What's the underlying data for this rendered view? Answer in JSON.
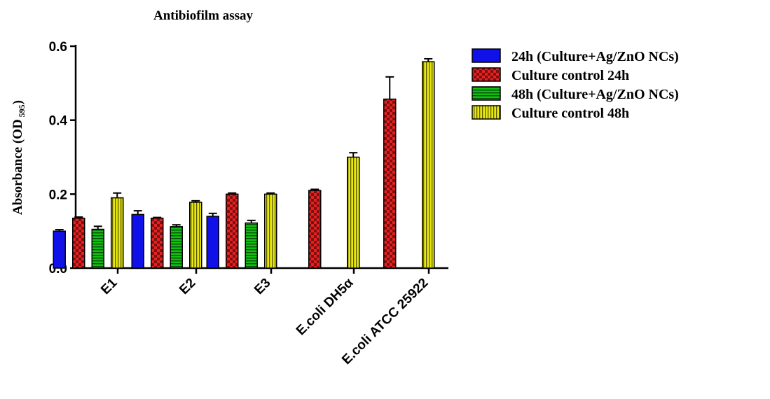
{
  "chart_data": {
    "type": "bar",
    "title": "Antibiofilm assay",
    "ylabel_main": "Absorbance (OD",
    "ylabel_sub": "595",
    "ylabel_close": ")",
    "xlabel": "",
    "ylim": [
      0,
      0.6
    ],
    "yticks": [
      "0.0",
      "0.2",
      "0.4",
      "0.6"
    ],
    "ytick_values": [
      0,
      0.2,
      0.4,
      0.6
    ],
    "categories": [
      "E1",
      "E2",
      "E3",
      "E.coli DH5α",
      "E.coli ATCC 25922"
    ],
    "legend_position": "right",
    "grid": false,
    "series": [
      {
        "name": "24h (Culture+Ag/ZnO NCs)",
        "color": "#1010e8",
        "pattern": "solid",
        "values": [
          0.1,
          0.145,
          0.14,
          null,
          null
        ],
        "errors": [
          0.004,
          0.01,
          0.008,
          null,
          null
        ]
      },
      {
        "name": "Culture control 24h",
        "color": "#e82020",
        "pattern": "checker",
        "values": [
          0.135,
          0.135,
          0.2,
          0.21,
          0.457
        ],
        "errors": [
          0.003,
          0.002,
          0.003,
          0.003,
          0.06
        ]
      },
      {
        "name": "48h (Culture+Ag/ZnO NCs)",
        "color": "#10c010",
        "pattern": "horizontal-stripes",
        "values": [
          0.105,
          0.112,
          0.122,
          null,
          null
        ],
        "errors": [
          0.008,
          0.005,
          0.007,
          null,
          null
        ]
      },
      {
        "name": "Culture control 48h",
        "color": "#e8e810",
        "pattern": "vertical-stripes",
        "values": [
          0.19,
          0.178,
          0.2,
          0.3,
          0.558
        ],
        "errors": [
          0.013,
          0.004,
          0.003,
          0.012,
          0.008
        ]
      }
    ]
  }
}
